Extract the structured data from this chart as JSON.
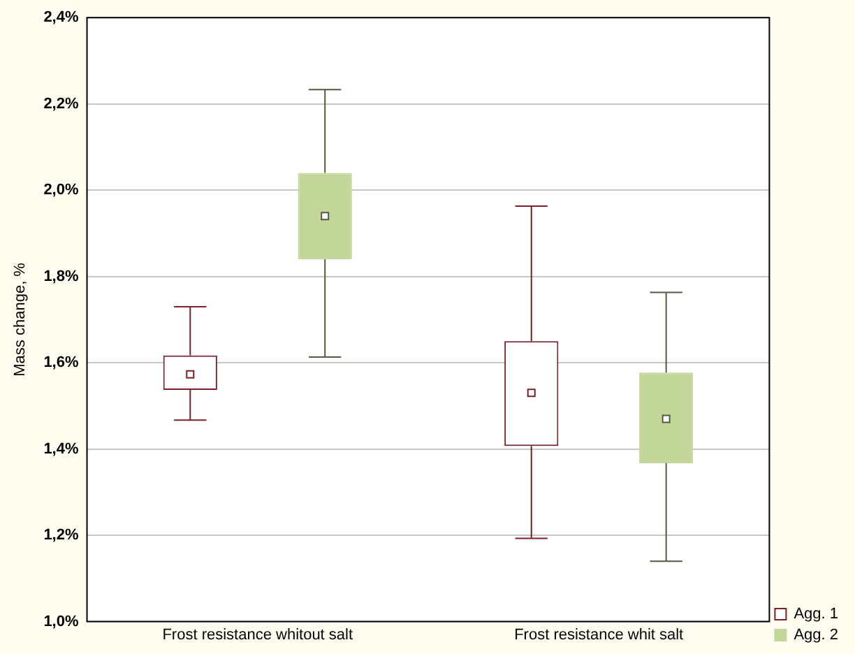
{
  "chart_data": {
    "type": "box",
    "ylabel": "Mass change, %",
    "categories": [
      "Frost resistance whitout salt",
      "Frost resistance whit salt"
    ],
    "ylim": [
      1.0,
      2.4
    ],
    "yticks": [
      {
        "value": 1.0,
        "label": "1,0%"
      },
      {
        "value": 1.2,
        "label": "1,2%"
      },
      {
        "value": 1.4,
        "label": "1,4%"
      },
      {
        "value": 1.6,
        "label": "1,6%"
      },
      {
        "value": 1.8,
        "label": "1,8%"
      },
      {
        "value": 2.0,
        "label": "2,0%"
      },
      {
        "value": 2.2,
        "label": "2,2%"
      },
      {
        "value": 2.4,
        "label": "2,4%"
      }
    ],
    "grid": "y",
    "legend": "bottom right",
    "marker": "square",
    "series": [
      {
        "name": "Agg. 1",
        "color": "#7a1f2b",
        "boxes": [
          {
            "low": 1.467,
            "q1": 1.537,
            "median": 1.573,
            "q3": 1.617,
            "high": 1.73
          },
          {
            "low": 1.193,
            "q1": 1.407,
            "median": 1.53,
            "q3": 1.65,
            "high": 1.963
          }
        ]
      },
      {
        "name": "Agg. 2",
        "color": "#c4d79b",
        "boxes": [
          {
            "low": 1.613,
            "q1": 1.84,
            "median": 1.94,
            "q3": 2.04,
            "high": 2.233
          },
          {
            "low": 1.14,
            "q1": 1.367,
            "median": 1.47,
            "q3": 1.577,
            "high": 1.763
          }
        ]
      }
    ]
  }
}
